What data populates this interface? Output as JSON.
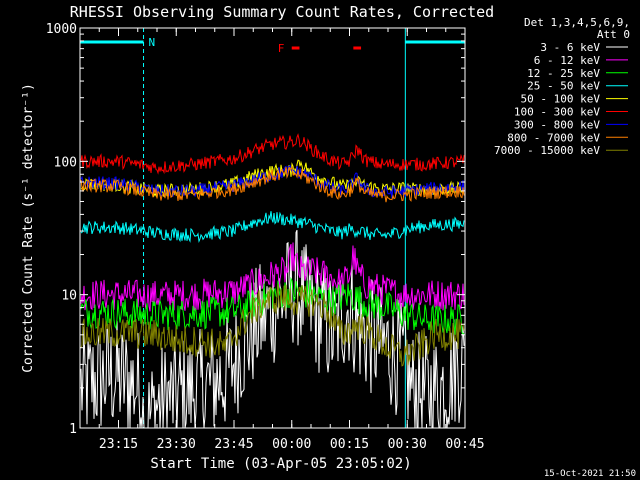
{
  "chart_data": {
    "type": "line",
    "title": "RHESSI Observing Summary Count Rates, Corrected",
    "xlabel": "Start Time (03-Apr-05 23:05:02)",
    "ylabel": "Corrected Count Rate (s⁻¹ detector⁻¹)",
    "yscale": "log",
    "ylim": [
      1,
      1000
    ],
    "xlim_minutes": [
      0,
      100
    ],
    "x_ticks": [
      {
        "label": "23:15",
        "minute": 10
      },
      {
        "label": "23:30",
        "minute": 25
      },
      {
        "label": "23:45",
        "minute": 40
      },
      {
        "label": "00:00",
        "minute": 55
      },
      {
        "label": "00:15",
        "minute": 70
      },
      {
        "label": "00:30",
        "minute": 85
      },
      {
        "label": "00:45",
        "minute": 100
      }
    ],
    "y_ticks": [
      {
        "label": "1",
        "value": 1
      },
      {
        "label": "10",
        "value": 10
      },
      {
        "label": "100",
        "value": 100
      },
      {
        "label": "1000",
        "value": 1000
      }
    ],
    "legend_position": "right",
    "legend_header": [
      "Det 1,3,4,5,6,9,",
      "Att 0"
    ],
    "flags": [
      {
        "label": "N",
        "color": "#00ffff",
        "segments": [
          [
            0,
            16.5
          ],
          [
            84.5,
            100
          ]
        ]
      },
      {
        "label": "F",
        "color": "#ff0000",
        "segments": [
          [
            55,
            57
          ],
          [
            71,
            73
          ]
        ]
      }
    ],
    "vlines": [
      {
        "minute": 16.5,
        "style": "dashed"
      },
      {
        "minute": 84.5,
        "style": "solid"
      },
      {
        "minute": 100,
        "style": "dashed"
      }
    ],
    "series": [
      {
        "name": "3 - 6 keV",
        "color": "#ffffff",
        "x": [
          0,
          8,
          16,
          16.5,
          20,
          26,
          32,
          38,
          42,
          46,
          50,
          54,
          56,
          58,
          62,
          66,
          68,
          70,
          72,
          74,
          80,
          84.5,
          86,
          90,
          94,
          98,
          100
        ],
        "values": [
          2,
          2.5,
          2,
          1,
          1.5,
          1.8,
          2,
          2.5,
          4,
          6,
          8,
          10,
          12,
          9,
          7,
          5,
          7,
          8,
          6,
          5,
          4,
          3,
          2,
          1.8,
          2,
          3,
          3
        ]
      },
      {
        "name": "6 - 12 keV",
        "color": "#ff00ff",
        "x": [
          0,
          10,
          20,
          30,
          40,
          45,
          50,
          54,
          55,
          57,
          60,
          64,
          66,
          68,
          70,
          71,
          72,
          74,
          78,
          84,
          90,
          100
        ],
        "values": [
          10,
          10,
          9.8,
          10,
          10.5,
          12,
          14,
          15,
          20,
          15,
          15,
          14,
          13,
          12,
          14,
          20,
          15,
          12,
          11,
          10,
          10,
          10
        ]
      },
      {
        "name": "12 - 25 keV",
        "color": "#00ff00",
        "x": [
          0,
          10,
          20,
          30,
          40,
          45,
          50,
          55,
          60,
          65,
          70,
          75,
          80,
          85,
          90,
          100
        ],
        "values": [
          7.5,
          7.3,
          7,
          7.2,
          7.5,
          8.5,
          10,
          10.5,
          10,
          9,
          10,
          8.5,
          8,
          7,
          6.5,
          6.5
        ]
      },
      {
        "name": "25 - 50 keV",
        "color": "#00ffff",
        "x": [
          0,
          10,
          20,
          30,
          40,
          45,
          50,
          55,
          58,
          62,
          65,
          68,
          70,
          73,
          76,
          80,
          85,
          90,
          100
        ],
        "values": [
          32,
          32,
          29,
          28,
          30,
          35,
          38,
          36,
          35,
          32,
          30,
          29,
          31,
          30,
          28,
          28,
          31,
          33,
          34
        ]
      },
      {
        "name": "50 - 100 keV",
        "color": "#ffff00",
        "x": [
          0,
          10,
          20,
          30,
          40,
          45,
          50,
          55,
          57,
          60,
          64,
          68,
          70,
          72,
          74,
          78,
          84.5,
          86,
          90,
          100
        ],
        "values": [
          68,
          66,
          60,
          62,
          68,
          78,
          85,
          85,
          100,
          82,
          72,
          65,
          66,
          70,
          66,
          62,
          63,
          62,
          62,
          62
        ]
      },
      {
        "name": "100 - 300 keV",
        "color": "#ff0000",
        "x": [
          0,
          10,
          20,
          30,
          40,
          45,
          50,
          55,
          57,
          60,
          64,
          68,
          70,
          72,
          74,
          78,
          84.5,
          90,
          100
        ],
        "values": [
          100,
          100,
          90,
          95,
          105,
          120,
          135,
          140,
          145,
          125,
          105,
          95,
          100,
          125,
          102,
          95,
          95,
          95,
          100
        ]
      },
      {
        "name": "300 - 800 keV",
        "color": "#0000ff",
        "x": [
          0,
          10,
          20,
          30,
          40,
          45,
          50,
          55,
          58,
          62,
          66,
          68,
          70,
          72,
          74,
          78,
          84.5,
          90,
          100
        ],
        "values": [
          70,
          68,
          60,
          60,
          66,
          72,
          80,
          85,
          82,
          70,
          62,
          60,
          65,
          75,
          62,
          58,
          60,
          62,
          65
        ]
      },
      {
        "name": "800 - 7000 keV",
        "color": "#ff8000",
        "x": [
          0,
          10,
          20,
          30,
          40,
          45,
          50,
          55,
          58,
          62,
          66,
          68,
          70,
          72,
          74,
          78,
          84.5,
          90,
          100
        ],
        "values": [
          66,
          65,
          56,
          56,
          62,
          70,
          78,
          82,
          78,
          66,
          58,
          56,
          60,
          70,
          58,
          55,
          56,
          58,
          60
        ]
      },
      {
        "name": "7000 - 15000 keV",
        "color": "#808000",
        "x": [
          0,
          10,
          20,
          26,
          32,
          38,
          40,
          44,
          48,
          52,
          56,
          60,
          64,
          66,
          68,
          72,
          76,
          80,
          84,
          88,
          92,
          100
        ],
        "values": [
          5,
          5.2,
          5,
          4.5,
          4.5,
          4,
          5,
          7,
          9,
          9.5,
          9,
          9,
          8,
          6,
          5,
          6,
          5,
          4,
          3.5,
          4,
          5,
          5
        ]
      }
    ]
  },
  "footer_date": "15-Oct-2021 21:50"
}
